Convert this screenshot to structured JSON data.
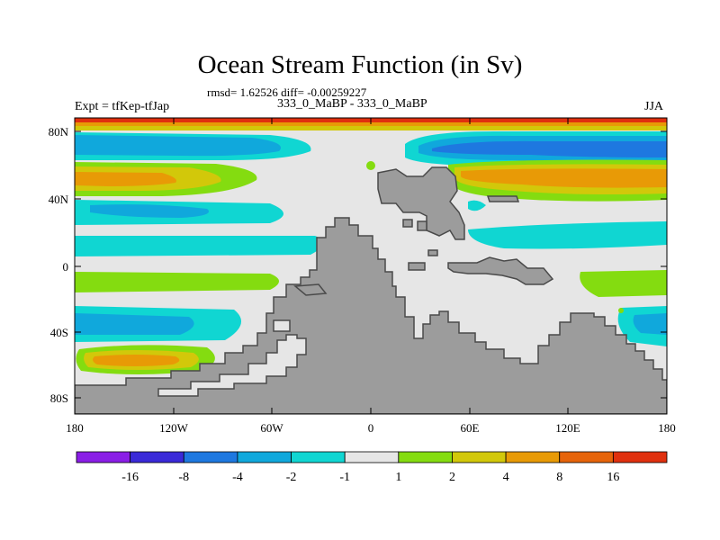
{
  "title": "Ocean Stream Function (in Sv)",
  "stats": "rmsd= 1.62526 diff= -0.00259227",
  "experiment": "Expt = tfKep-tfJap",
  "subtitle": "333_0_MaBP - 333_0_MaBP",
  "season": "JJA",
  "lat_labels": [
    "80N",
    "40N",
    "0",
    "40S",
    "80S"
  ],
  "lon_labels": [
    "180",
    "120W",
    "60W",
    "0",
    "60E",
    "120E",
    "180"
  ],
  "colorbar": {
    "labels": [
      "-16",
      "-8",
      "-4",
      "-2",
      "-1",
      "1",
      "2",
      "4",
      "8",
      "16"
    ],
    "colors": [
      "#8a1ee6",
      "#3a2ad8",
      "#1e78e0",
      "#10a8dc",
      "#10d6d2",
      "#e6e6e6",
      "#84dc10",
      "#d2c80a",
      "#e89a06",
      "#e6640a",
      "#e0300e"
    ]
  },
  "map_colors": {
    "background": "#e6e6e6",
    "land": "#9c9c9c",
    "coast": "#4a4a4a"
  }
}
